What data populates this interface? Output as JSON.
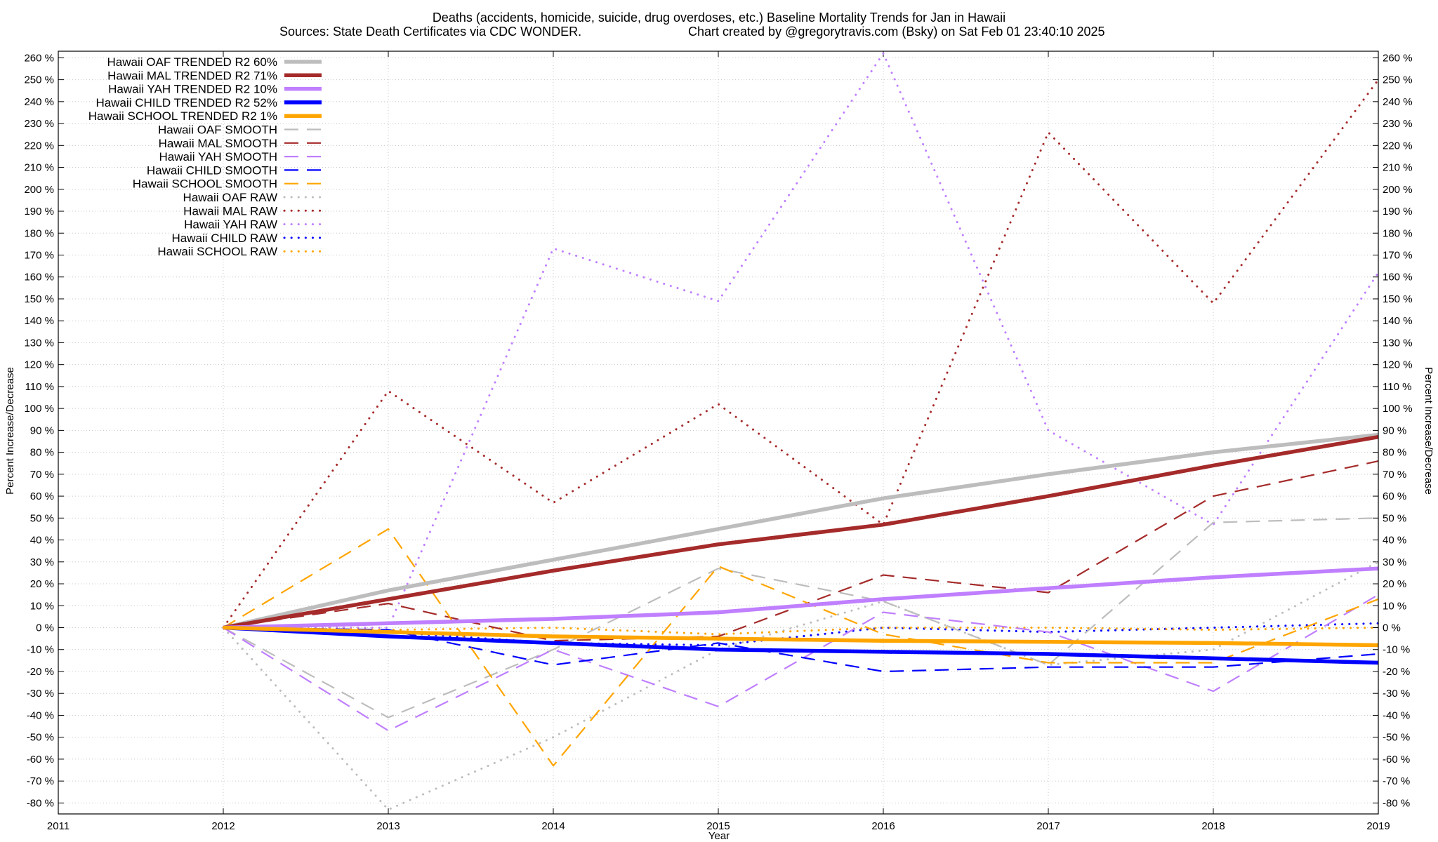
{
  "chart_data": {
    "type": "line",
    "title": "Deaths (accidents, homicide, suicide, drug overdoses, etc.)  Baseline Mortality Trends for Jan in Hawaii",
    "subtitle_left": "Sources: State Death Certificates via CDC WONDER.",
    "subtitle_right": "Chart created by @gregorytravis.com (Bsky) on Sat Feb 01 23:40:10 2025",
    "xlabel": "Year",
    "ylabel": "Percent Increase/Decrease",
    "y2label": "Percent Increase/Decrease",
    "xlim": [
      2011,
      2019
    ],
    "ylim": [
      -85,
      263
    ],
    "grid": true,
    "legend_position": "top-left",
    "x_ticks": [
      "2011",
      "2012",
      "2013",
      "2014",
      "2015",
      "2016",
      "2017",
      "2018",
      "2019"
    ],
    "y_ticks": [
      "260 %",
      "250 %",
      "240 %",
      "230 %",
      "220 %",
      "210 %",
      "200 %",
      "190 %",
      "180 %",
      "170 %",
      "160 %",
      "150 %",
      "140 %",
      "130 %",
      "120 %",
      "110 %",
      "100 %",
      "90 %",
      "80 %",
      "70 %",
      "60 %",
      "50 %",
      "40 %",
      "30 %",
      "20 %",
      "10 %",
      "0 %",
      "-10 %",
      "-20 %",
      "-30 %",
      "-40 %",
      "-50 %",
      "-60 %",
      "-70 %",
      "-80 %"
    ],
    "x": [
      2012,
      2013,
      2014,
      2015,
      2016,
      2017,
      2018,
      2019
    ],
    "series": [
      {
        "name": "Hawaii OAF TRENDED R2  60%",
        "color": "#bdbdbd",
        "style": "solid",
        "values": [
          0,
          17,
          31,
          45,
          59,
          70,
          80,
          88
        ]
      },
      {
        "name": "Hawaii MAL TRENDED R2  71%",
        "color": "#a52a2a",
        "style": "solid",
        "values": [
          0,
          13,
          26,
          38,
          47,
          60,
          74,
          87
        ]
      },
      {
        "name": "Hawaii YAH TRENDED R2  10%",
        "color": "#bf7fff",
        "style": "solid",
        "values": [
          0,
          2,
          4,
          7,
          13,
          18,
          23,
          27
        ]
      },
      {
        "name": "Hawaii CHILD TRENDED R2  52%",
        "color": "#0000ff",
        "style": "solid",
        "values": [
          0,
          -4,
          -7,
          -10,
          -11,
          -12,
          -14,
          -16
        ]
      },
      {
        "name": "Hawaii SCHOOL TRENDED R2   1%",
        "color": "#ffa500",
        "style": "solid",
        "values": [
          0,
          -2,
          -4,
          -5,
          -6,
          -6.5,
          -7,
          -8
        ]
      },
      {
        "name": "Hawaii OAF SMOOTH",
        "color": "#bdbdbd",
        "style": "dashed",
        "values": [
          0,
          -41,
          -10,
          27,
          12,
          -17,
          48,
          50
        ]
      },
      {
        "name": "Hawaii MAL SMOOTH",
        "color": "#a52a2a",
        "style": "dashed",
        "values": [
          0,
          11,
          -6,
          -4,
          24,
          16,
          60,
          76
        ]
      },
      {
        "name": "Hawaii YAH SMOOTH",
        "color": "#bf7fff",
        "style": "dashed",
        "values": [
          0,
          -47,
          -10,
          -36,
          7,
          -2,
          -29,
          15
        ]
      },
      {
        "name": "Hawaii CHILD SMOOTH",
        "color": "#0000ff",
        "style": "dashed",
        "values": [
          0,
          -1,
          -17,
          -7,
          -20,
          -18,
          -18,
          -12
        ]
      },
      {
        "name": "Hawaii SCHOOL SMOOTH",
        "color": "#ffa500",
        "style": "dashed",
        "values": [
          0,
          45,
          -63,
          28,
          -3,
          -16,
          -16,
          13
        ]
      },
      {
        "name": "Hawaii OAF RAW",
        "color": "#bdbdbd",
        "style": "dotted",
        "values": [
          0,
          -83,
          -50,
          -10,
          12,
          -17,
          -10,
          30
        ]
      },
      {
        "name": "Hawaii MAL RAW",
        "color": "#a52a2a",
        "style": "dotted",
        "values": [
          0,
          108,
          57,
          102,
          47,
          226,
          148,
          250
        ]
      },
      {
        "name": "Hawaii YAH RAW",
        "color": "#bf7fff",
        "style": "dotted",
        "values": [
          0,
          0,
          173,
          149,
          262,
          90,
          47,
          162
        ]
      },
      {
        "name": "Hawaii CHILD RAW",
        "color": "#0000ff",
        "style": "dotted",
        "values": [
          0,
          -2,
          -7,
          -8,
          0,
          -2,
          0,
          2
        ]
      },
      {
        "name": "Hawaii SCHOOL RAW",
        "color": "#ffa500",
        "style": "dotted",
        "values": [
          0,
          -1,
          0,
          -3,
          0,
          0,
          -1,
          0
        ]
      }
    ]
  }
}
